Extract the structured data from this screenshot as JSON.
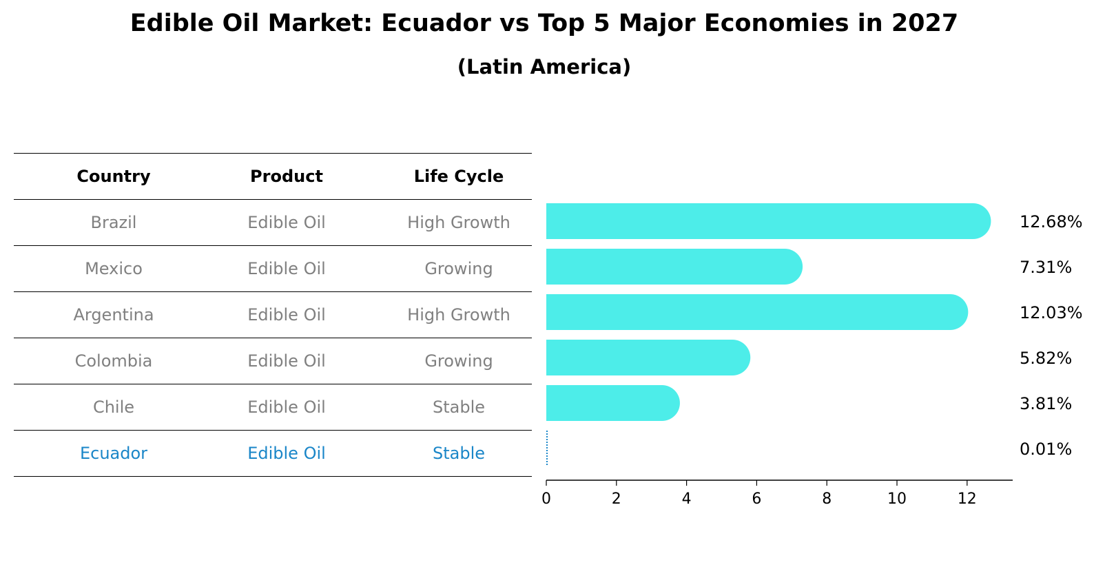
{
  "title": "Edible Oil Market: Ecuador vs Top 5 Major Economies in 2027",
  "subtitle": "(Latin America)",
  "table": {
    "headers": [
      "Country",
      "Product",
      "Life Cycle"
    ],
    "rows": [
      [
        "Brazil",
        "Edible Oil",
        "High Growth"
      ],
      [
        "Mexico",
        "Edible Oil",
        "Growing"
      ],
      [
        "Argentina",
        "Edible Oil",
        "High Growth"
      ],
      [
        "Colombia",
        "Edible Oil",
        "Growing"
      ],
      [
        "Chile",
        "Edible Oil",
        "Stable"
      ],
      [
        "Ecuador",
        "Edible Oil",
        "Stable"
      ]
    ],
    "highlight_row": "Ecuador"
  },
  "colors": {
    "bar": "#4dede9",
    "highlight": "#1a86c8",
    "muted_text": "#808080"
  },
  "chart_data": {
    "type": "bar",
    "orientation": "horizontal",
    "categories": [
      "Brazil",
      "Mexico",
      "Argentina",
      "Colombia",
      "Chile",
      "Ecuador"
    ],
    "values": [
      12.68,
      7.31,
      12.03,
      5.82,
      3.81,
      0.01
    ],
    "value_labels": [
      "12.68%",
      "7.31%",
      "12.03%",
      "5.82%",
      "3.81%",
      "0.01%"
    ],
    "xticks": [
      0,
      2,
      4,
      6,
      8,
      10,
      12
    ],
    "xlim": [
      0,
      13.3
    ],
    "grid": false
  }
}
